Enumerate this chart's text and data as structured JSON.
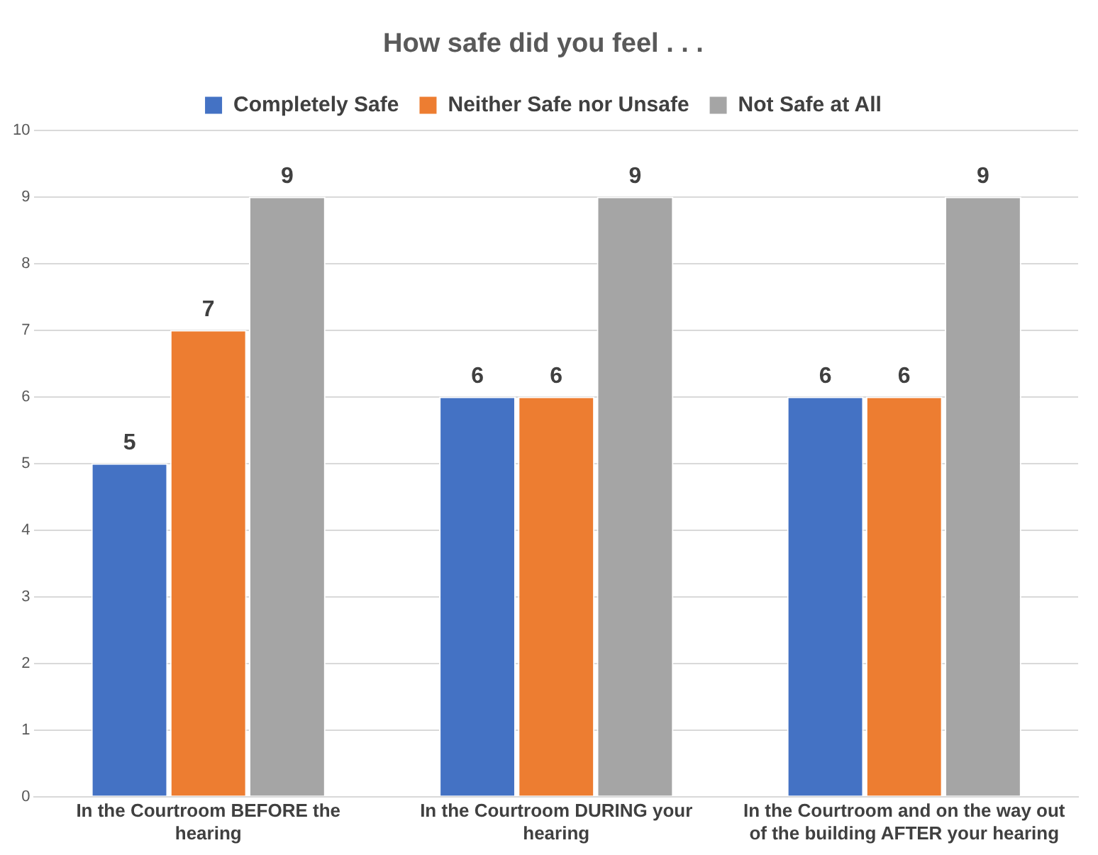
{
  "chart_data": {
    "type": "bar",
    "title": "How safe did you feel . . .",
    "categories": [
      "In the Courtroom BEFORE the hearing",
      "In the Courtroom DURING your hearing",
      "In the Courtroom and on the way out of the building AFTER your hearing"
    ],
    "series": [
      {
        "name": "Completely Safe",
        "color": "#4472c4",
        "values": [
          5,
          6,
          6
        ]
      },
      {
        "name": "Neither Safe nor Unsafe",
        "color": "#ed7d31",
        "values": [
          7,
          6,
          6
        ]
      },
      {
        "name": "Not Safe at All",
        "color": "#a5a5a5",
        "values": [
          9,
          9,
          9
        ]
      }
    ],
    "ylim": [
      0,
      10
    ],
    "yticks": [
      0,
      1,
      2,
      3,
      4,
      5,
      6,
      7,
      8,
      9,
      10
    ],
    "grid": "y",
    "legend": "top",
    "data_labels": true
  }
}
